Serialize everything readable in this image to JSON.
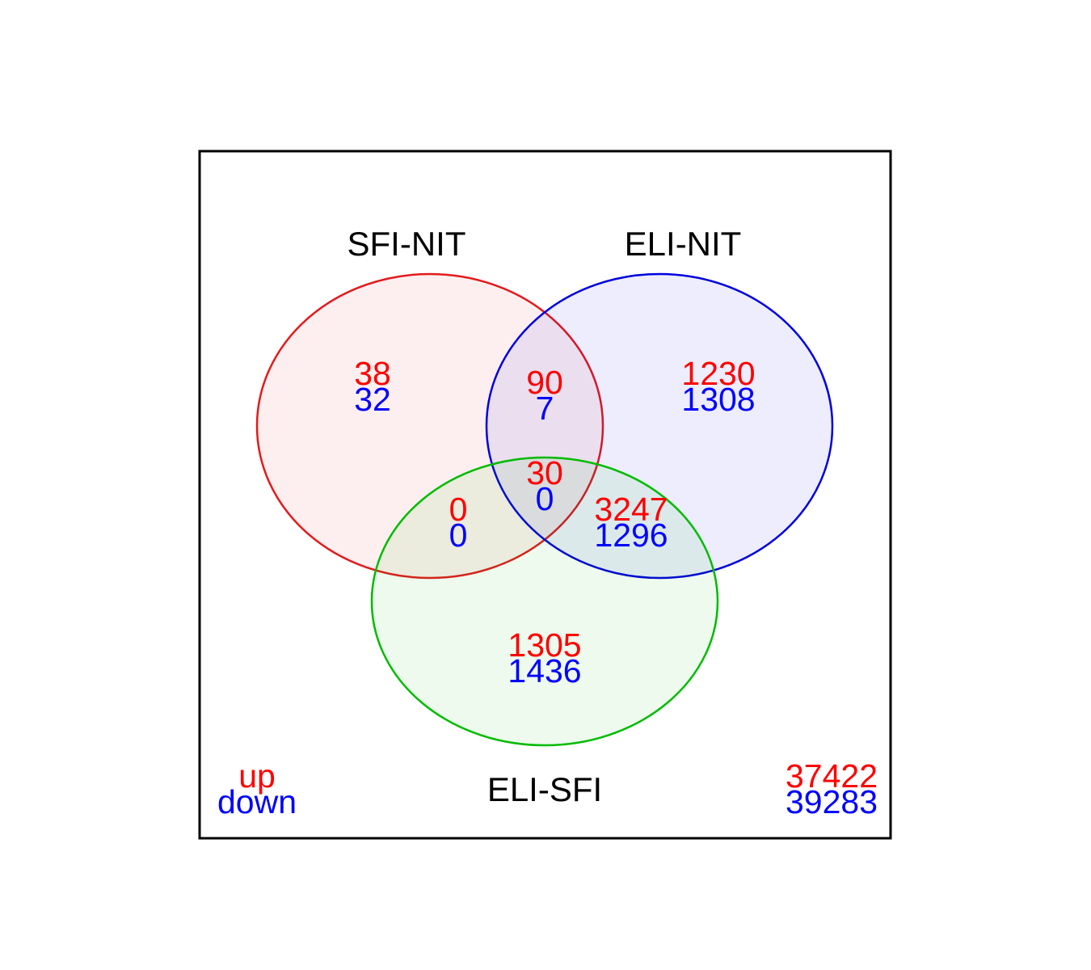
{
  "colors": {
    "up": "#ff0000",
    "down": "#0000ff",
    "set_a": "#e31a1c",
    "set_b": "#0000dd",
    "set_c": "#00bb00",
    "label": "#000000"
  },
  "sets": [
    {
      "name": "SFI-NIT"
    },
    {
      "name": "ELI-NIT"
    },
    {
      "name": "ELI-SFI"
    }
  ],
  "regions": {
    "a_only": {
      "up": "38",
      "down": "32"
    },
    "ab": {
      "up": "90",
      "down": "7"
    },
    "b_only": {
      "up": "1230",
      "down": "1308"
    },
    "abc": {
      "up": "30",
      "down": "0"
    },
    "ac": {
      "up": "0",
      "down": "0"
    },
    "bc": {
      "up": "3247",
      "down": "1296"
    },
    "c_only": {
      "up": "1305",
      "down": "1436"
    },
    "outside": {
      "up": "37422",
      "down": "39283"
    }
  },
  "legend": {
    "up": "up",
    "down": "down"
  }
}
